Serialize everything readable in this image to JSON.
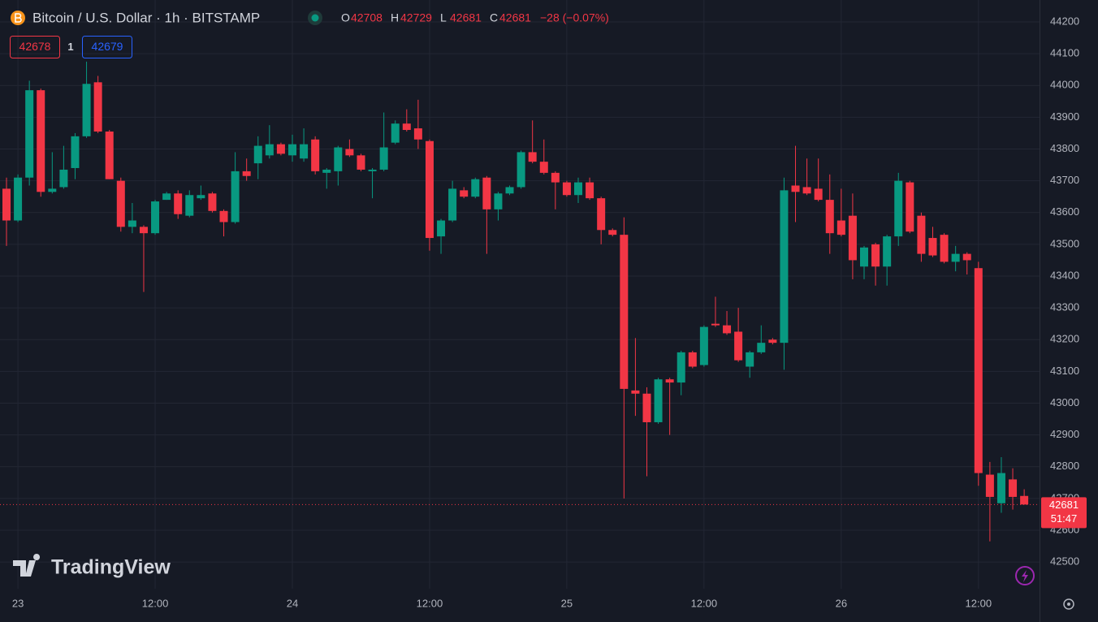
{
  "chart_data": {
    "type": "candlestick",
    "title": "Bitcoin / U.S. Dollar · 1h · BITSTAMP",
    "ohlc_header": [
      {
        "key": "O",
        "value": 42708
      },
      {
        "key": "H",
        "value": 42729
      },
      {
        "key": "L",
        "value": 42681
      },
      {
        "key": "C",
        "value": 42681
      }
    ],
    "change": "−28 (−0.07%)",
    "trade": {
      "sell": 42678,
      "quantity": 1,
      "buy": 42679
    },
    "last_price": {
      "value": 42681,
      "countdown": "51:47"
    },
    "watermark": "TradingView",
    "up_color": "#089981",
    "down_color": "#f23645",
    "grid": true,
    "categories": [
      null,
      "23",
      null,
      null,
      null,
      null,
      null,
      null,
      null,
      null,
      null,
      null,
      null,
      "12:00",
      null,
      null,
      null,
      null,
      null,
      null,
      null,
      null,
      null,
      null,
      null,
      "24",
      null,
      null,
      null,
      null,
      null,
      null,
      null,
      null,
      null,
      null,
      null,
      "12:00",
      null,
      null,
      null,
      null,
      null,
      null,
      null,
      null,
      null,
      null,
      null,
      "25",
      null,
      null,
      null,
      null,
      null,
      null,
      null,
      null,
      null,
      null,
      null,
      "12:00",
      null,
      null,
      null,
      null,
      null,
      null,
      null,
      null,
      null,
      null,
      null,
      "26",
      null,
      null,
      null,
      null,
      null,
      null,
      null,
      null,
      null,
      null,
      null,
      "12:00",
      null,
      null,
      null,
      null
    ],
    "open": [
      43675,
      43575,
      43710,
      43985,
      43665,
      43680,
      43740,
      43840,
      44010,
      43855,
      43700,
      43555,
      43555,
      43535,
      43640,
      43660,
      43590,
      43645,
      43660,
      43605,
      43570,
      43730,
      43755,
      43780,
      43815,
      43780,
      43770,
      43830,
      43725,
      43730,
      43800,
      43780,
      43730,
      43735,
      43820,
      43880,
      43865,
      43825,
      43525,
      43575,
      43670,
      43650,
      43710,
      43610,
      43660,
      43680,
      43790,
      43760,
      43725,
      43695,
      43655,
      43695,
      43645,
      43545,
      43530,
      43040,
      43030,
      42940,
      43075,
      43065,
      43160,
      43120,
      43250,
      43245,
      43225,
      43115,
      43160,
      43200,
      43190,
      43685,
      43680,
      43675,
      43640,
      43575,
      43590,
      43430,
      43500,
      43430,
      43525,
      43695,
      43590,
      43520,
      43530,
      43445,
      43470,
      43425,
      42775,
      42685,
      42760,
      42708
    ],
    "high": [
      43710,
      43720,
      44015,
      43990,
      43790,
      43810,
      43850,
      44075,
      44030,
      43860,
      43710,
      43630,
      43560,
      43640,
      43665,
      43670,
      43670,
      43685,
      43665,
      43610,
      43790,
      43770,
      43840,
      43875,
      43820,
      43845,
      43865,
      43840,
      43740,
      43810,
      43830,
      43785,
      43740,
      43915,
      43890,
      43925,
      43955,
      43830,
      43580,
      43700,
      43680,
      43710,
      43715,
      43665,
      43685,
      43795,
      43890,
      43830,
      43730,
      43700,
      43710,
      43710,
      43650,
      43550,
      43585,
      43205,
      43050,
      43080,
      43080,
      43165,
      43165,
      43245,
      43335,
      43290,
      43300,
      43165,
      43245,
      43205,
      43710,
      43810,
      43770,
      43770,
      43720,
      43675,
      43660,
      43495,
      43505,
      43530,
      43725,
      43700,
      43600,
      43555,
      43535,
      43495,
      43475,
      43445,
      42815,
      42830,
      42795,
      42729
    ],
    "low": [
      43495,
      43570,
      43685,
      43650,
      43660,
      43675,
      43705,
      43835,
      43850,
      43705,
      43540,
      43535,
      43350,
      43530,
      43640,
      43580,
      43585,
      43640,
      43600,
      43525,
      43565,
      43700,
      43705,
      43770,
      43780,
      43760,
      43760,
      43720,
      43675,
      43685,
      43775,
      43730,
      43645,
      43730,
      43815,
      43855,
      43800,
      43480,
      43470,
      43570,
      43645,
      43645,
      43470,
      43575,
      43655,
      43675,
      43755,
      43720,
      43610,
      43650,
      43630,
      43640,
      43500,
      43525,
      42700,
      42960,
      42770,
      42935,
      42900,
      43025,
      43110,
      43115,
      43240,
      43215,
      43130,
      43080,
      43155,
      43185,
      43105,
      43570,
      43655,
      43635,
      43470,
      43525,
      43390,
      43390,
      43370,
      43370,
      43495,
      43535,
      43445,
      43460,
      43440,
      43415,
      43405,
      42740,
      42565,
      42655,
      42665,
      42681
    ],
    "close": [
      43575,
      43710,
      43985,
      43665,
      43675,
      43735,
      43840,
      44005,
      43855,
      43705,
      43555,
      43575,
      43535,
      43635,
      43660,
      43595,
      43655,
      43655,
      43605,
      43570,
      43730,
      43715,
      43810,
      43815,
      43785,
      43815,
      43815,
      43730,
      43735,
      43805,
      43780,
      43735,
      43735,
      43805,
      43880,
      43860,
      43830,
      43520,
      43575,
      43675,
      43650,
      43705,
      43610,
      43660,
      43680,
      43790,
      43760,
      43725,
      43695,
      43655,
      43695,
      43645,
      43545,
      43530,
      43045,
      43030,
      42940,
      43075,
      43065,
      43160,
      43115,
      43240,
      43245,
      43220,
      43135,
      43160,
      43190,
      43190,
      43670,
      43665,
      43660,
      43640,
      43535,
      43530,
      43450,
      43490,
      43430,
      43525,
      43700,
      43540,
      43470,
      43465,
      43445,
      43470,
      43450,
      42780,
      42705,
      42780,
      42705,
      42681
    ],
    "ylim": [
      42416,
      44269
    ],
    "yticks": [
      42500,
      42600,
      42700,
      42800,
      42900,
      43000,
      43100,
      43200,
      43300,
      43400,
      43500,
      43600,
      43700,
      43800,
      43900,
      44000,
      44100,
      44200
    ]
  }
}
